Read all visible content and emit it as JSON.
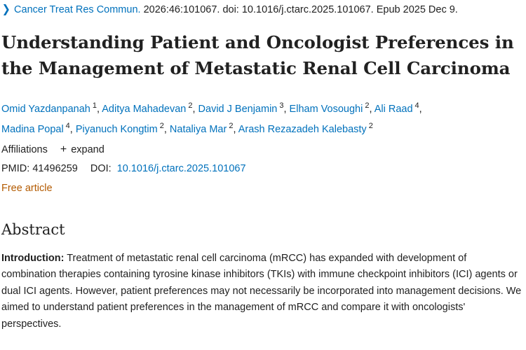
{
  "citation": {
    "journal": "Cancer Treat Res Commun.",
    "details": " 2026:46:101067. doi: 10.1016/j.ctarc.2025.101067. Epub 2025 Dec 9."
  },
  "title": "Understanding Patient and Oncologist Preferences in the Management of Metastatic Renal Cell Carcinoma",
  "authors": [
    {
      "name": "Omid Yazdanpanah",
      "aff": "1"
    },
    {
      "name": "Aditya Mahadevan",
      "aff": "2"
    },
    {
      "name": "David J Benjamin",
      "aff": "3"
    },
    {
      "name": "Elham Vosoughi",
      "aff": "2"
    },
    {
      "name": "Ali Raad",
      "aff": "4"
    },
    {
      "name": "Madina Popal",
      "aff": "4"
    },
    {
      "name": "Piyanuch Kongtim",
      "aff": "2"
    },
    {
      "name": "Nataliya Mar",
      "aff": "2"
    },
    {
      "name": "Arash Rezazadeh Kalebasty",
      "aff": "2"
    }
  ],
  "affiliations": {
    "label": "Affiliations",
    "expand_label": "expand"
  },
  "ids": {
    "pmid_label": "PMID:",
    "pmid": "41496259",
    "doi_label": "DOI:",
    "doi": "10.1016/j.ctarc.2025.101067"
  },
  "free_article": "Free article",
  "abstract": {
    "heading": "Abstract",
    "intro_label": "Introduction:",
    "intro_text": "Treatment of metastatic renal cell carcinoma (mRCC) has expanded with development of combination therapies containing tyrosine kinase inhibitors (TKIs) with immune checkpoint inhibitors (ICI) agents or dual ICI agents. However, patient preferences may not necessarily be incorporated into management decisions. We aimed to understand patient preferences in the management of mRCC and compare it with oncologists' perspectives."
  },
  "colors": {
    "link": "#0071bc",
    "free_article": "#b35a00",
    "text": "#212121"
  }
}
